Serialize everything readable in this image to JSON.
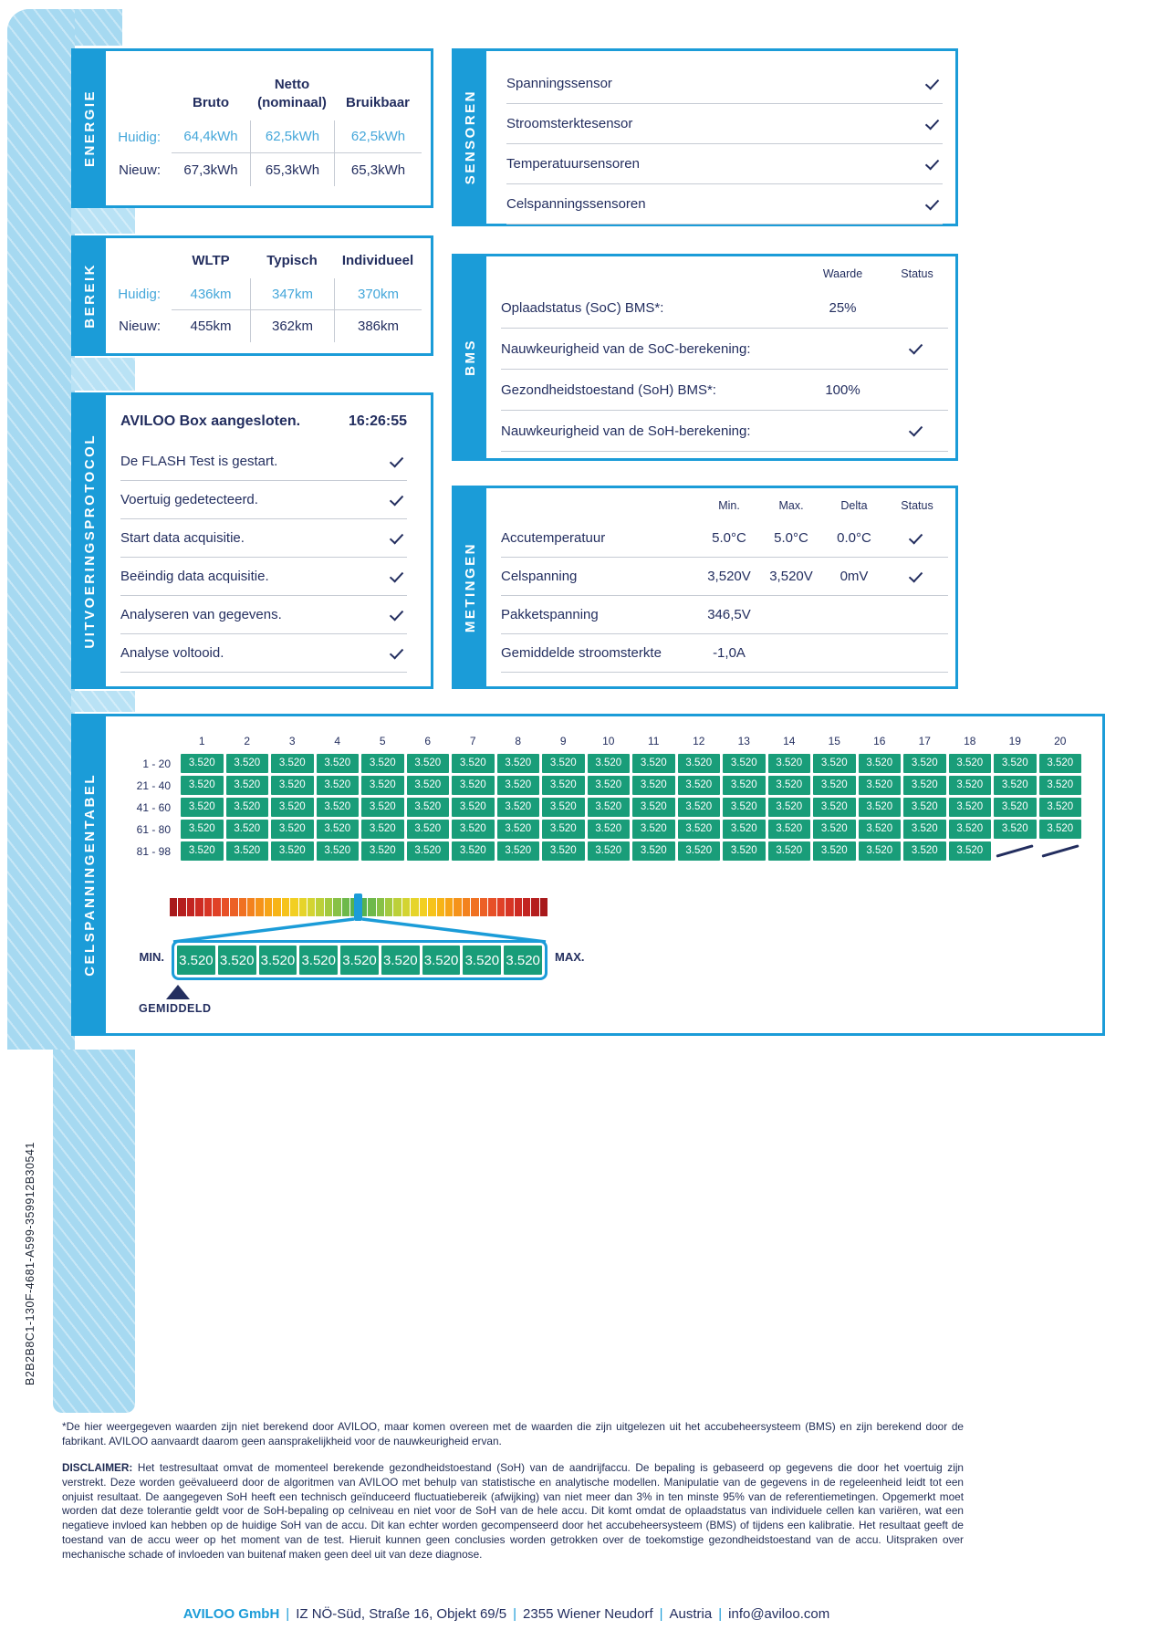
{
  "colors": {
    "accent_blue": "#1b9cd8",
    "band_blue": "#a6d9f1",
    "navy": "#232e5f",
    "highlight_blue": "#45a7da",
    "cell_green": "#199d79"
  },
  "energie": {
    "label": "ENERGIE",
    "headers": [
      "Bruto",
      "Netto\n(nominaal)",
      "Bruikbaar"
    ],
    "rows": [
      {
        "label": "Huidig:",
        "values": [
          "64,4kWh",
          "62,5kWh",
          "62,5kWh"
        ],
        "highlight": true
      },
      {
        "label": "Nieuw:",
        "values": [
          "67,3kWh",
          "65,3kWh",
          "65,3kWh"
        ],
        "highlight": false
      }
    ]
  },
  "bereik": {
    "label": "BEREIK",
    "headers": [
      "WLTP",
      "Typisch",
      "Individueel"
    ],
    "rows": [
      {
        "label": "Huidig:",
        "values": [
          "436km",
          "347km",
          "370km"
        ],
        "highlight": true
      },
      {
        "label": "Nieuw:",
        "values": [
          "455km",
          "362km",
          "386km"
        ],
        "highlight": false
      }
    ]
  },
  "sensoren": {
    "label": "SENSOREN",
    "items": [
      "Spanningssensor",
      "Stroomsterktesensor",
      "Temperatuursensoren",
      "Celspanningssensoren"
    ]
  },
  "protocol": {
    "label": "UITVOERINGSPROTOCOL",
    "title": "AVILOO Box aangesloten.",
    "time": "16:26:55",
    "steps": [
      "De FLASH Test is gestart.",
      "Voertuig gedetecteerd.",
      "Start data acquisitie.",
      "Beëindig data acquisitie.",
      "Analyseren van gegevens.",
      "Analyse voltooid."
    ]
  },
  "bms": {
    "label": "BMS",
    "col_headers": [
      "Waarde",
      "Status"
    ],
    "rows": [
      {
        "text": "Oplaadstatus (SoC) BMS*:",
        "waarde": "25%",
        "check": false
      },
      {
        "text": "Nauwkeurigheid van de SoC-berekening:",
        "waarde": "",
        "check": true
      },
      {
        "text": "Gezondheidstoestand (SoH) BMS*:",
        "waarde": "100%",
        "check": false
      },
      {
        "text": "Nauwkeurigheid van de SoH-berekening:",
        "waarde": "",
        "check": true
      }
    ]
  },
  "metingen": {
    "label": "METINGEN",
    "col_headers": [
      "Min.",
      "Max.",
      "Delta",
      "Status"
    ],
    "rows": [
      {
        "name": "Accutemperatuur",
        "min": "5.0°C",
        "max": "5.0°C",
        "delta": "0.0°C",
        "check": true
      },
      {
        "name": "Celspanning",
        "min": "3,520V",
        "max": "3,520V",
        "delta": "0mV",
        "check": true
      },
      {
        "name": "Pakketspanning",
        "min": "346,5V",
        "max": "",
        "delta": "",
        "check": false
      },
      {
        "name": "Gemiddelde stroomsterkte",
        "min": "-1,0A",
        "max": "",
        "delta": "",
        "check": false
      }
    ]
  },
  "celltable": {
    "label": "CELSPANNINGENTABEL",
    "col_numbers": [
      "1",
      "2",
      "3",
      "4",
      "5",
      "6",
      "7",
      "8",
      "9",
      "10",
      "11",
      "12",
      "13",
      "14",
      "15",
      "16",
      "17",
      "18",
      "19",
      "20"
    ],
    "rows": [
      {
        "label": "1 - 20",
        "count": 20,
        "empty": 0
      },
      {
        "label": "21 - 40",
        "count": 20,
        "empty": 0
      },
      {
        "label": "41 - 60",
        "count": 20,
        "empty": 0
      },
      {
        "label": "61 - 80",
        "count": 20,
        "empty": 0
      },
      {
        "label": "81 - 98",
        "count": 18,
        "empty": 2
      }
    ],
    "cell_value": "3.520",
    "min_label": "MIN.",
    "max_label": "MAX.",
    "avg_label": "GEMIDDELD",
    "zoom_cells": [
      "3.520",
      "3.520",
      "3.520",
      "3.520",
      "3.520",
      "3.520",
      "3.520",
      "3.520",
      "3.520"
    ]
  },
  "chart_data": {
    "type": "table",
    "title": "CELSPANNINGENTABEL",
    "cell_count": 98,
    "uniform_cell_voltage": 3.52,
    "min": 3.52,
    "max": 3.52,
    "average": 3.52
  },
  "gradient_half": [
    "#a8191b",
    "#b51e1e",
    "#c22421",
    "#cd2b23",
    "#d73525",
    "#e04127",
    "#e75027",
    "#ec6026",
    "#f07122",
    "#f3821e",
    "#f5931a",
    "#f6a417",
    "#f7b417",
    "#f6c31b",
    "#f2cf22",
    "#e6d42a",
    "#d3d432",
    "#bcd039",
    "#a3c93f",
    "#88c146",
    "#6eb94b",
    "#57b24f"
  ],
  "footnote": "*De hier weergegeven waarden zijn niet berekend door AVILOO, maar komen overeen met de waarden die zijn uitgelezen uit het accubeheersysteem (BMS) en zijn berekend door de fabrikant. AVILOO aanvaardt daarom geen aansprakelijkheid voor de nauwkeurigheid ervan.",
  "disclaimer_label": "DISCLAIMER:",
  "disclaimer_text": " Het testresultaat omvat de momenteel berekende gezondheidstoestand (SoH) van de aandrijfaccu. De bepaling is gebaseerd op gegevens die door het voertuig zijn verstrekt. Deze worden geëvalueerd door de algoritmen van AVILOO met behulp van statistische en analytische modellen. Manipulatie van de gegevens in de regeleenheid leidt tot een onjuist resultaat. De aangegeven SoH heeft een technisch geïnduceerd fluctuatiebereik (afwijking) van niet meer dan 3% in ten minste 95% van de referentiemetingen. Opgemerkt moet worden dat deze tolerantie geldt voor de SoH-bepaling op celniveau en niet voor de SoH van de hele accu. Dit komt omdat de oplaadstatus van individuele cellen kan variëren, wat een negatieve invloed kan hebben op de huidige SoH van de accu. Dit kan echter worden gecompenseerd door het accubeheersysteem (BMS) of tijdens een kalibratie. Het resultaat geeft de toestand van de accu weer op het moment van de test. Hieruit kunnen geen conclusies worden getrokken over de toekomstige gezondheidstoestand van de accu. Uitspraken over mechanische schade of invloeden van buitenaf maken geen deel uit van deze diagnose.",
  "report_id": "B2B2B8C1-130F-4681-A599-359912B30541",
  "footer": {
    "brand": "AVILOO GmbH",
    "parts": [
      "IZ NÖ-Süd, Straße 16, Objekt 69/5",
      "2355 Wiener Neudorf",
      "Austria",
      "info@aviloo.com"
    ],
    "separator": "|"
  }
}
